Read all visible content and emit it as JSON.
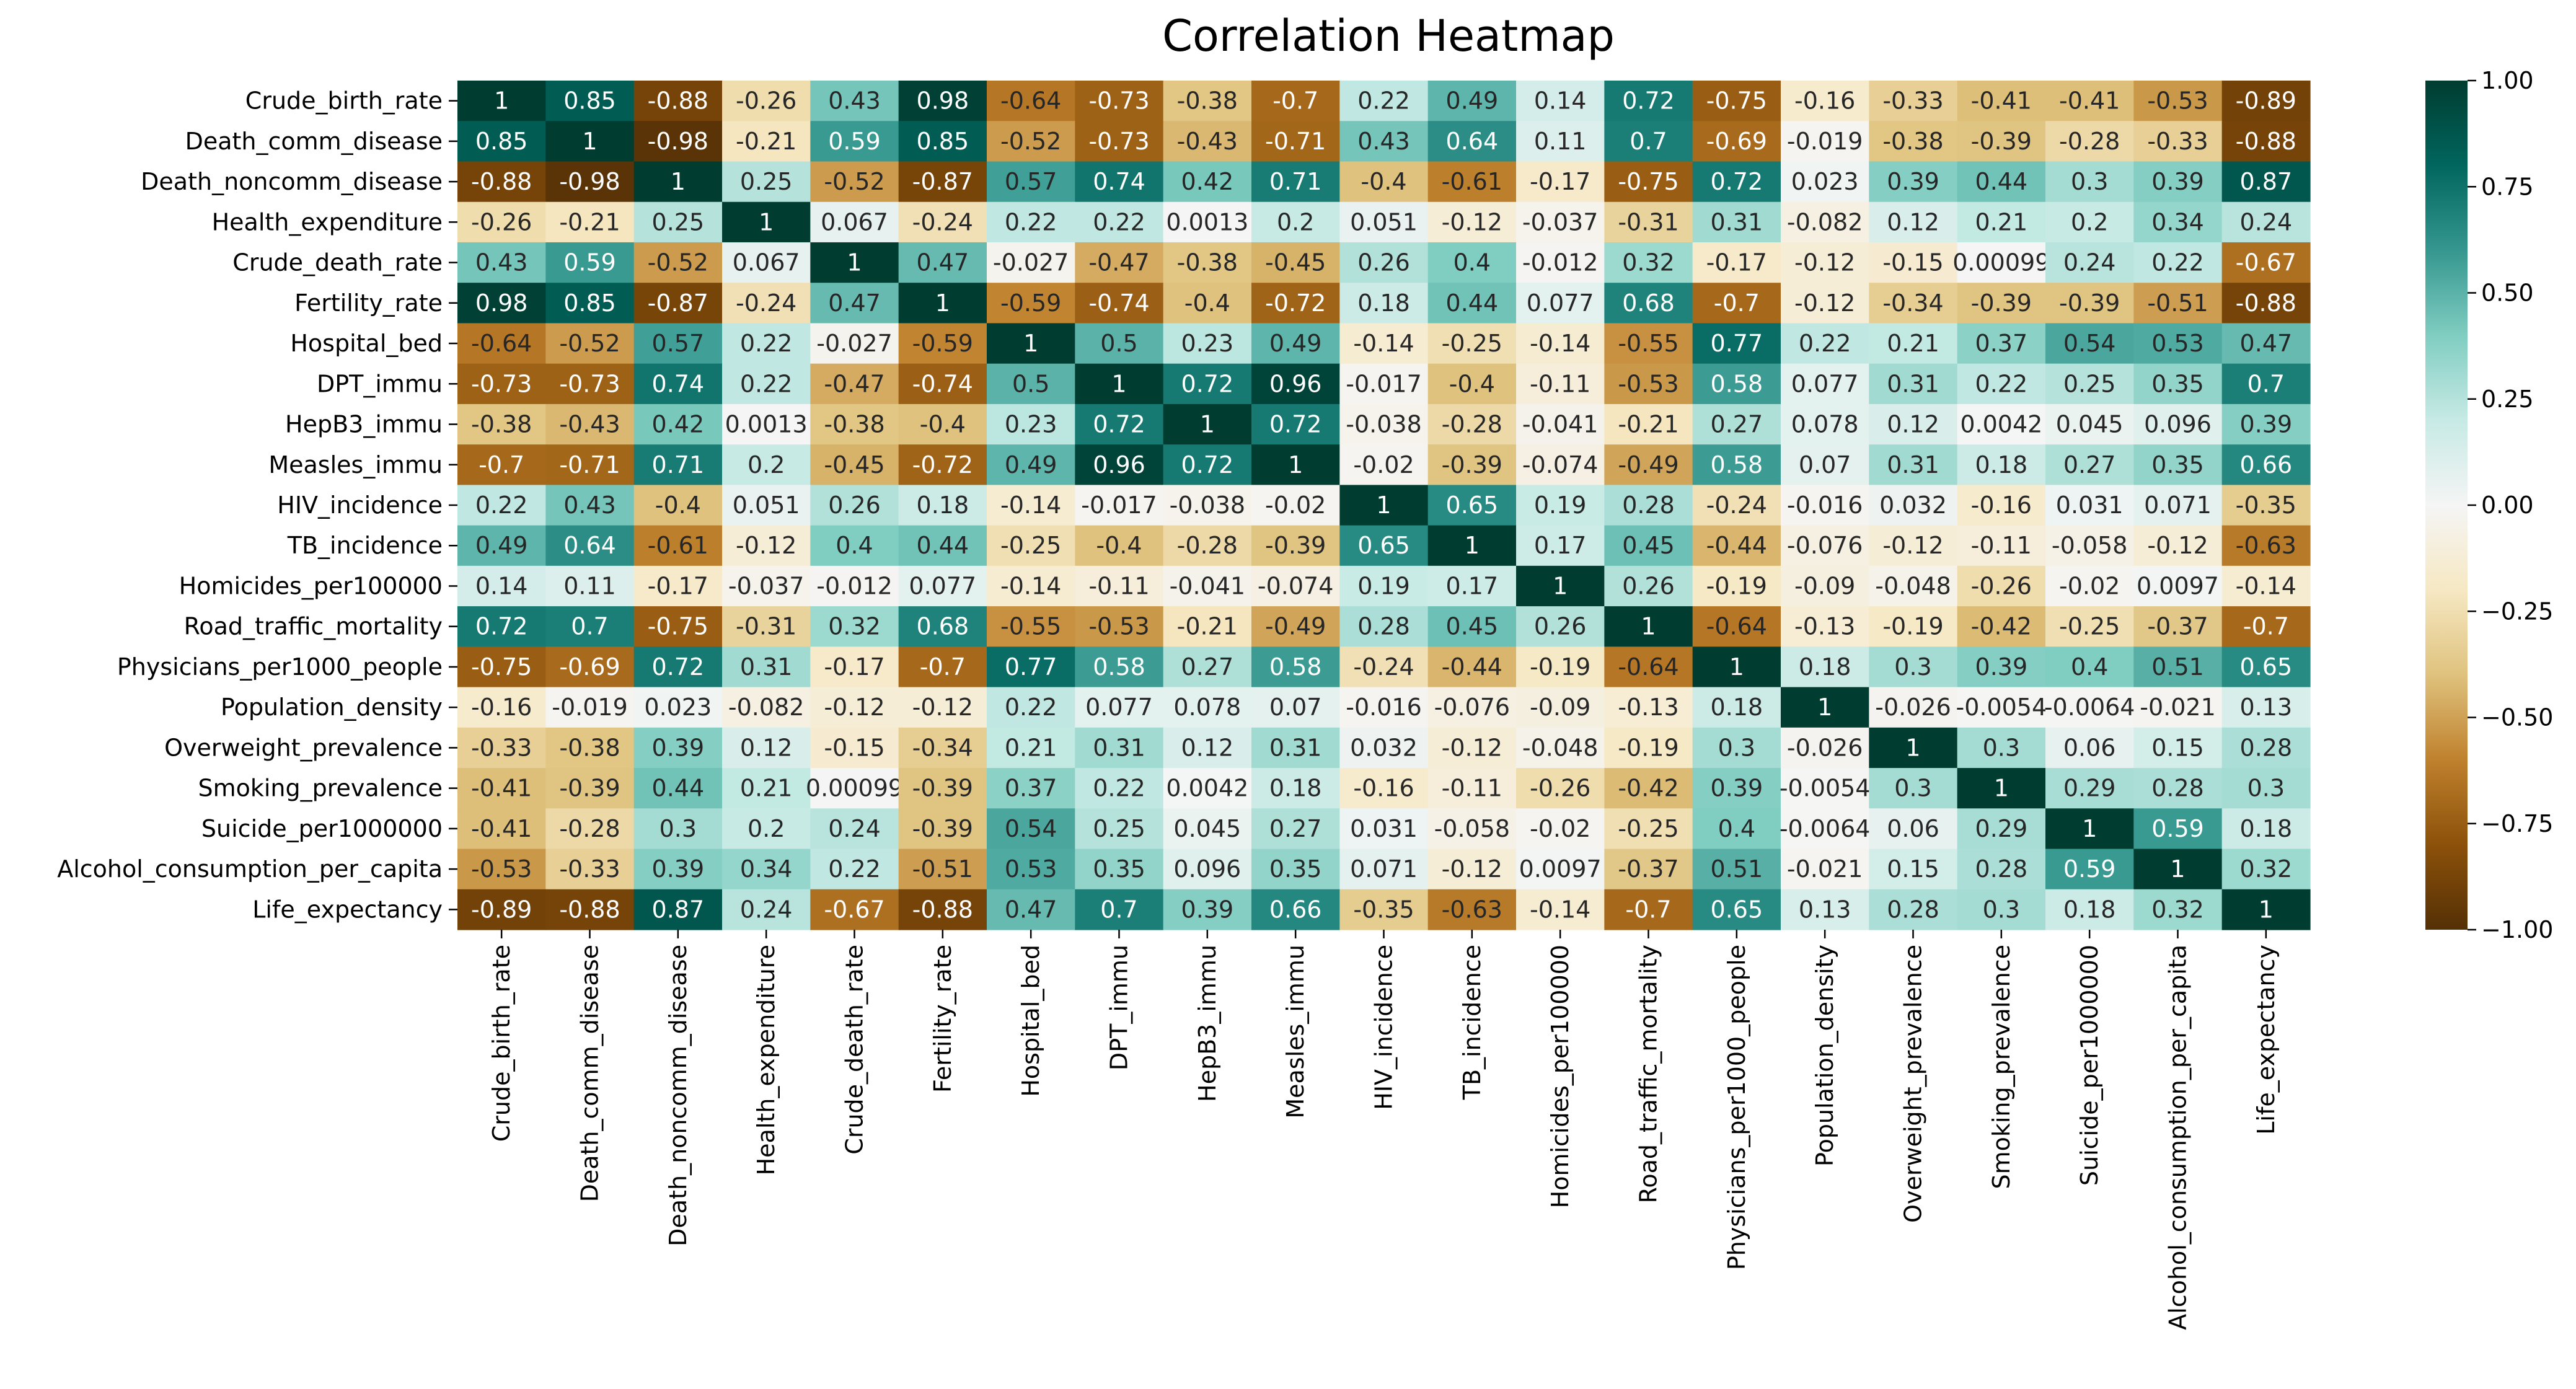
{
  "chart_data": {
    "type": "heatmap",
    "title": "Correlation Heatmap",
    "xlabel": "",
    "ylabel": "",
    "variables": [
      "Crude_birth_rate",
      "Death_comm_disease",
      "Death_noncomm_disease",
      "Health_expenditure",
      "Crude_death_rate",
      "Fertility_rate",
      "Hospital_bed",
      "DPT_immu",
      "HepB3_immu",
      "Measles_immu",
      "HIV_incidence",
      "TB_incidence",
      "Homicides_per100000",
      "Road_traffic_mortality",
      "Physicians_per1000_people",
      "Population_density",
      "Overweight_prevalence",
      "Smoking_prevalence",
      "Suicide_per1000000",
      "Alcohol_consumption_per_capita",
      "Life_expectancy"
    ],
    "matrix": [
      [
        "1",
        "0.85",
        "-0.88",
        "-0.26",
        "0.43",
        "0.98",
        "-0.64",
        "-0.73",
        "-0.38",
        "-0.7",
        "0.22",
        "0.49",
        "0.14",
        "0.72",
        "-0.75",
        "-0.16",
        "-0.33",
        "-0.41",
        "-0.41",
        "-0.53",
        "-0.89"
      ],
      [
        "0.85",
        "1",
        "-0.98",
        "-0.21",
        "0.59",
        "0.85",
        "-0.52",
        "-0.73",
        "-0.43",
        "-0.71",
        "0.43",
        "0.64",
        "0.11",
        "0.7",
        "-0.69",
        "-0.019",
        "-0.38",
        "-0.39",
        "-0.28",
        "-0.33",
        "-0.88"
      ],
      [
        "-0.88",
        "-0.98",
        "1",
        "0.25",
        "-0.52",
        "-0.87",
        "0.57",
        "0.74",
        "0.42",
        "0.71",
        "-0.4",
        "-0.61",
        "-0.17",
        "-0.75",
        "0.72",
        "0.023",
        "0.39",
        "0.44",
        "0.3",
        "0.39",
        "0.87"
      ],
      [
        "-0.26",
        "-0.21",
        "0.25",
        "1",
        "0.067",
        "-0.24",
        "0.22",
        "0.22",
        "0.0013",
        "0.2",
        "0.051",
        "-0.12",
        "-0.037",
        "-0.31",
        "0.31",
        "-0.082",
        "0.12",
        "0.21",
        "0.2",
        "0.34",
        "0.24"
      ],
      [
        "0.43",
        "0.59",
        "-0.52",
        "0.067",
        "1",
        "0.47",
        "-0.027",
        "-0.47",
        "-0.38",
        "-0.45",
        "0.26",
        "0.4",
        "-0.012",
        "0.32",
        "-0.17",
        "-0.12",
        "-0.15",
        "0.00099",
        "0.24",
        "0.22",
        "-0.67"
      ],
      [
        "0.98",
        "0.85",
        "-0.87",
        "-0.24",
        "0.47",
        "1",
        "-0.59",
        "-0.74",
        "-0.4",
        "-0.72",
        "0.18",
        "0.44",
        "0.077",
        "0.68",
        "-0.7",
        "-0.12",
        "-0.34",
        "-0.39",
        "-0.39",
        "-0.51",
        "-0.88"
      ],
      [
        "-0.64",
        "-0.52",
        "0.57",
        "0.22",
        "-0.027",
        "-0.59",
        "1",
        "0.5",
        "0.23",
        "0.49",
        "-0.14",
        "-0.25",
        "-0.14",
        "-0.55",
        "0.77",
        "0.22",
        "0.21",
        "0.37",
        "0.54",
        "0.53",
        "0.47"
      ],
      [
        "-0.73",
        "-0.73",
        "0.74",
        "0.22",
        "-0.47",
        "-0.74",
        "0.5",
        "1",
        "0.72",
        "0.96",
        "-0.017",
        "-0.4",
        "-0.11",
        "-0.53",
        "0.58",
        "0.077",
        "0.31",
        "0.22",
        "0.25",
        "0.35",
        "0.7"
      ],
      [
        "-0.38",
        "-0.43",
        "0.42",
        "0.0013",
        "-0.38",
        "-0.4",
        "0.23",
        "0.72",
        "1",
        "0.72",
        "-0.038",
        "-0.28",
        "-0.041",
        "-0.21",
        "0.27",
        "0.078",
        "0.12",
        "0.0042",
        "0.045",
        "0.096",
        "0.39"
      ],
      [
        "-0.7",
        "-0.71",
        "0.71",
        "0.2",
        "-0.45",
        "-0.72",
        "0.49",
        "0.96",
        "0.72",
        "1",
        "-0.02",
        "-0.39",
        "-0.074",
        "-0.49",
        "0.58",
        "0.07",
        "0.31",
        "0.18",
        "0.27",
        "0.35",
        "0.66"
      ],
      [
        "0.22",
        "0.43",
        "-0.4",
        "0.051",
        "0.26",
        "0.18",
        "-0.14",
        "-0.017",
        "-0.038",
        "-0.02",
        "1",
        "0.65",
        "0.19",
        "0.28",
        "-0.24",
        "-0.016",
        "0.032",
        "-0.16",
        "0.031",
        "0.071",
        "-0.35"
      ],
      [
        "0.49",
        "0.64",
        "-0.61",
        "-0.12",
        "0.4",
        "0.44",
        "-0.25",
        "-0.4",
        "-0.28",
        "-0.39",
        "0.65",
        "1",
        "0.17",
        "0.45",
        "-0.44",
        "-0.076",
        "-0.12",
        "-0.11",
        "-0.058",
        "-0.12",
        "-0.63"
      ],
      [
        "0.14",
        "0.11",
        "-0.17",
        "-0.037",
        "-0.012",
        "0.077",
        "-0.14",
        "-0.11",
        "-0.041",
        "-0.074",
        "0.19",
        "0.17",
        "1",
        "0.26",
        "-0.19",
        "-0.09",
        "-0.048",
        "-0.26",
        "-0.02",
        "0.0097",
        "-0.14"
      ],
      [
        "0.72",
        "0.7",
        "-0.75",
        "-0.31",
        "0.32",
        "0.68",
        "-0.55",
        "-0.53",
        "-0.21",
        "-0.49",
        "0.28",
        "0.45",
        "0.26",
        "1",
        "-0.64",
        "-0.13",
        "-0.19",
        "-0.42",
        "-0.25",
        "-0.37",
        "-0.7"
      ],
      [
        "-0.75",
        "-0.69",
        "0.72",
        "0.31",
        "-0.17",
        "-0.7",
        "0.77",
        "0.58",
        "0.27",
        "0.58",
        "-0.24",
        "-0.44",
        "-0.19",
        "-0.64",
        "1",
        "0.18",
        "0.3",
        "0.39",
        "0.4",
        "0.51",
        "0.65"
      ],
      [
        "-0.16",
        "-0.019",
        "0.023",
        "-0.082",
        "-0.12",
        "-0.12",
        "0.22",
        "0.077",
        "0.078",
        "0.07",
        "-0.016",
        "-0.076",
        "-0.09",
        "-0.13",
        "0.18",
        "1",
        "-0.026",
        "-0.0054",
        "-0.0064",
        "-0.021",
        "0.13"
      ],
      [
        "-0.33",
        "-0.38",
        "0.39",
        "0.12",
        "-0.15",
        "-0.34",
        "0.21",
        "0.31",
        "0.12",
        "0.31",
        "0.032",
        "-0.12",
        "-0.048",
        "-0.19",
        "0.3",
        "-0.026",
        "1",
        "0.3",
        "0.06",
        "0.15",
        "0.28"
      ],
      [
        "-0.41",
        "-0.39",
        "0.44",
        "0.21",
        "0.00099",
        "-0.39",
        "0.37",
        "0.22",
        "0.0042",
        "0.18",
        "-0.16",
        "-0.11",
        "-0.26",
        "-0.42",
        "0.39",
        "-0.0054",
        "0.3",
        "1",
        "0.29",
        "0.28",
        "0.3"
      ],
      [
        "-0.41",
        "-0.28",
        "0.3",
        "0.2",
        "0.24",
        "-0.39",
        "0.54",
        "0.25",
        "0.045",
        "0.27",
        "0.031",
        "-0.058",
        "-0.02",
        "-0.25",
        "0.4",
        "-0.0064",
        "0.06",
        "0.29",
        "1",
        "0.59",
        "0.18"
      ],
      [
        "-0.53",
        "-0.33",
        "0.39",
        "0.34",
        "0.22",
        "-0.51",
        "0.53",
        "0.35",
        "0.096",
        "0.35",
        "0.071",
        "-0.12",
        "0.0097",
        "-0.37",
        "0.51",
        "-0.021",
        "0.15",
        "0.28",
        "0.59",
        "1",
        "0.32"
      ],
      [
        "-0.89",
        "-0.88",
        "0.87",
        "0.24",
        "-0.67",
        "-0.88",
        "0.47",
        "0.7",
        "0.39",
        "0.66",
        "-0.35",
        "-0.63",
        "-0.14",
        "-0.7",
        "0.65",
        "0.13",
        "0.28",
        "0.3",
        "0.18",
        "0.32",
        "1"
      ]
    ],
    "colorbar": {
      "range": [
        -1,
        1
      ],
      "ticks": [
        "1.00",
        "0.75",
        "0.50",
        "0.25",
        "0.00",
        "−0.25",
        "−0.50",
        "−0.75",
        "−1.00"
      ],
      "tick_values": [
        1,
        0.75,
        0.5,
        0.25,
        0,
        -0.25,
        -0.5,
        -0.75,
        -1
      ],
      "colormap": "BrBG",
      "colormap_stops": [
        "#543005",
        "#8c510a",
        "#bf812d",
        "#dfc27d",
        "#f6e8c3",
        "#f5f5f5",
        "#c7eae5",
        "#80cdc1",
        "#35978f",
        "#01665e",
        "#003c30"
      ]
    },
    "grid": false,
    "legend": "colorbar-right"
  }
}
